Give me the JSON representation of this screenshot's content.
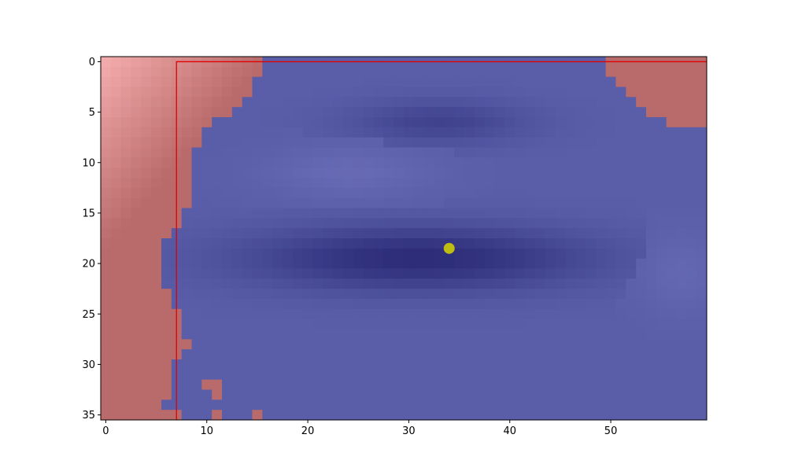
{
  "chart_data": {
    "type": "heatmap",
    "title": "",
    "xlabel": "",
    "ylabel": "",
    "grid": false,
    "x_range": [
      -0.5,
      59.5
    ],
    "y_range": [
      -0.5,
      35.5
    ],
    "y_axis_inverted": true,
    "columns": 60,
    "rows": 36,
    "x_ticks": [
      0,
      10,
      20,
      30,
      40,
      50
    ],
    "y_ticks": [
      0,
      5,
      10,
      15,
      20,
      25,
      30,
      35
    ],
    "colors": {
      "region_out": "#b96a6a",
      "region_out_light": "#f2aaaa",
      "region_in": "#5a5ea8",
      "region_in_dark": "#2c2c78",
      "region_in_light": "#6a6cb6",
      "outline": "#e00000",
      "marker": "#bdbd12"
    },
    "region_boundary_by_row": [
      {
        "row": 0,
        "left_end": 16,
        "right_start": 50
      },
      {
        "row": 1,
        "left_end": 16,
        "right_start": 50
      },
      {
        "row": 2,
        "left_end": 15,
        "right_start": 51
      },
      {
        "row": 3,
        "left_end": 15,
        "right_start": 52
      },
      {
        "row": 4,
        "left_end": 14,
        "right_start": 53
      },
      {
        "row": 5,
        "left_end": 13,
        "right_start": 54
      },
      {
        "row": 6,
        "left_end": 11,
        "right_start": 56
      },
      {
        "row": 7,
        "left_end": 10,
        "right_start": 60
      },
      {
        "row": 8,
        "left_end": 10,
        "right_start": 60
      },
      {
        "row": 9,
        "left_end": 9,
        "right_start": 60
      },
      {
        "row": 10,
        "left_end": 9,
        "right_start": 60
      },
      {
        "row": 11,
        "left_end": 9,
        "right_start": 60
      },
      {
        "row": 12,
        "left_end": 9,
        "right_start": 60
      },
      {
        "row": 13,
        "left_end": 9,
        "right_start": 60
      },
      {
        "row": 14,
        "left_end": 9,
        "right_start": 60
      },
      {
        "row": 15,
        "left_end": 8,
        "right_start": 60
      },
      {
        "row": 16,
        "left_end": 8,
        "right_start": 60
      },
      {
        "row": 17,
        "left_end": 7,
        "right_start": 60
      },
      {
        "row": 18,
        "left_end": 6,
        "right_start": 60
      },
      {
        "row": 19,
        "left_end": 6,
        "right_start": 60
      },
      {
        "row": 20,
        "left_end": 6,
        "right_start": 60
      },
      {
        "row": 21,
        "left_end": 6,
        "right_start": 60
      },
      {
        "row": 22,
        "left_end": 6,
        "right_start": 60
      },
      {
        "row": 23,
        "left_end": 7,
        "right_start": 60
      },
      {
        "row": 24,
        "left_end": 7,
        "right_start": 60
      },
      {
        "row": 25,
        "left_end": 8,
        "right_start": 60
      },
      {
        "row": 26,
        "left_end": 8,
        "right_start": 60
      },
      {
        "row": 27,
        "left_end": 8,
        "right_start": 60
      },
      {
        "row": 28,
        "left_end": 9,
        "right_start": 60
      },
      {
        "row": 29,
        "left_end": 8,
        "right_start": 60
      },
      {
        "row": 30,
        "left_end": 7,
        "right_start": 60
      },
      {
        "row": 31,
        "left_end": 7,
        "right_start": 60
      },
      {
        "row": 32,
        "left_end": 7,
        "right_start": 60
      },
      {
        "row": 33,
        "left_end": 7,
        "right_start": 60
      },
      {
        "row": 34,
        "left_end": 6,
        "right_start": 60
      },
      {
        "row": 35,
        "left_end": 8,
        "right_start": 60
      }
    ],
    "extra_out_cells": [
      {
        "col": 7,
        "row": 28
      },
      {
        "col": 8,
        "row": 28
      },
      {
        "col": 10,
        "row": 32
      },
      {
        "col": 11,
        "row": 32
      },
      {
        "col": 11,
        "row": 33
      },
      {
        "col": 11,
        "row": 35
      },
      {
        "col": 15,
        "row": 35
      }
    ],
    "outline_rect": {
      "x0": 7,
      "x1": 59.5,
      "y0": 0,
      "y1": 35.5
    },
    "dark_band_center": {
      "x": 31,
      "y": 19.5
    },
    "marker": {
      "x": 34,
      "y": 18.5,
      "shape": "circle"
    }
  }
}
